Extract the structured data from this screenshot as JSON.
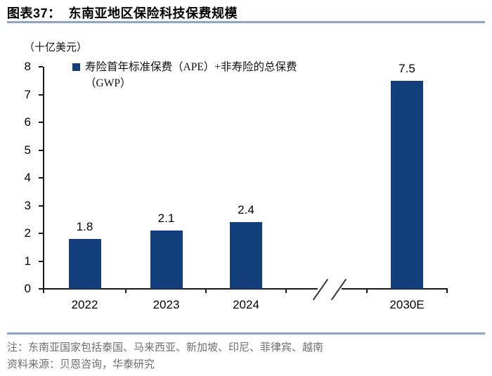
{
  "header": {
    "title": "图表37：  东南亚地区保险科技保费规模"
  },
  "chart_data": {
    "type": "bar",
    "figure_number": "图表37",
    "title": "东南亚地区保险科技保费规模",
    "unit_label": "（十亿美元）",
    "categories": [
      "2022",
      "2023",
      "2024",
      "2030E"
    ],
    "values": [
      1.8,
      2.1,
      2.4,
      7.5
    ],
    "value_labels": [
      "1.8",
      "2.1",
      "2.4",
      "7.5"
    ],
    "series_name": "寿险首年标准保费（APE）+非寿险的总保费（GWP）",
    "legend_lines": [
      "寿险首年标准保费（APE）+非寿险的总保费",
      "（GWP）"
    ],
    "xlabel": "",
    "ylabel": "（十亿美元）",
    "ylim": [
      0,
      8
    ],
    "ytick_interval": 1,
    "grid": false,
    "legend_position": "top-inside-left",
    "axis_break": "x-axis break between 2024 and 2030E",
    "bar_color": "#123E7C"
  },
  "footer": {
    "note": "注：东南亚国家包括泰国、马来西亚、新加坡、印尼、菲律宾、越南",
    "source": "资料来源：贝恩咨询，华泰研究"
  },
  "colors": {
    "bar": "#123E7C",
    "divider": "#8CA5C3",
    "note_text": "#6E6E6E",
    "axis": "#1A1A1A"
  }
}
